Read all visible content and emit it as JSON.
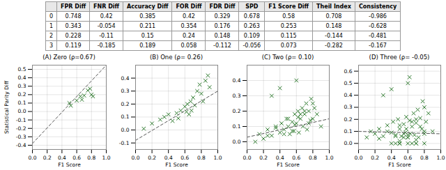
{
  "chart_data": [
    {
      "type": "table",
      "columns": [
        null,
        "FPR Diff",
        "FNR Diff",
        "Accuracy Diff",
        "FOR Diff",
        "FDR Diff",
        "SPD",
        "F1 Score Diff",
        "Theil Index",
        "Consistency"
      ],
      "rows": [
        [
          0,
          0.748,
          0.42,
          0.385,
          0.42,
          0.329,
          0.678,
          0.58,
          0.708,
          -0.986
        ],
        [
          1,
          0.343,
          -0.054,
          0.211,
          0.354,
          0.176,
          0.263,
          0.253,
          0.148,
          -0.628
        ],
        [
          2,
          0.228,
          -0.11,
          0.15,
          0.24,
          0.148,
          0.109,
          0.115,
          -0.144,
          -0.481
        ],
        [
          3,
          0.119,
          -0.185,
          0.189,
          0.058,
          -0.112,
          -0.056,
          0.073,
          -0.282,
          -0.167
        ]
      ]
    },
    {
      "type": "scatter",
      "title": "(A) Zero (ρ=0.67)",
      "xlabel": "F1 Score",
      "ylabel": "Statistical Parity Diff",
      "xlim": [
        0.0,
        1.0
      ],
      "xticks": [
        {
          "value": 0,
          "label": "0.0"
        },
        0.2,
        0.4,
        0.6,
        0.8,
        {
          "value": 1,
          "label": "1.0"
        }
      ],
      "ylim": [
        -0.45,
        0.55
      ],
      "yticks": [
        -0.4,
        -0.3,
        -0.2,
        -0.1,
        {
          "value": 0,
          "label": "0.0"
        },
        0.1,
        0.2,
        0.3,
        0.4,
        0.5
      ],
      "grid": true,
      "series": [
        {
          "type": "scatter",
          "color": "#2d7a2d",
          "marker": "x",
          "x": [
            0.5,
            0.52,
            0.6,
            0.65,
            0.67,
            0.7,
            0.75,
            0.78,
            0.8,
            0.82
          ],
          "values": [
            0.1,
            0.07,
            0.13,
            0.18,
            0.14,
            0.19,
            0.25,
            0.27,
            0.2,
            0.18
          ]
        },
        {
          "type": "line",
          "color": "#555555",
          "line_style": "dashed",
          "x": [
            0.0,
            1.0
          ],
          "values": [
            -0.38,
            0.55
          ]
        }
      ]
    },
    {
      "type": "scatter",
      "title": "(B) One (ρ= 0.26)",
      "xlabel": "F1 Score",
      "xlim": [
        0.0,
        1.0
      ],
      "xticks": [
        {
          "value": 0,
          "label": "0.0"
        },
        0.2,
        0.4,
        0.6,
        0.8,
        {
          "value": 1,
          "label": "1.0"
        }
      ],
      "ylim": [
        -0.15,
        0.5
      ],
      "yticks": [
        -0.1,
        {
          "value": 0,
          "label": "0.0"
        },
        0.1,
        0.2,
        0.3,
        0.4
      ],
      "grid": true,
      "series": [
        {
          "type": "scatter",
          "color": "#2d7a2d",
          "marker": "x",
          "x": [
            0.1,
            0.2,
            0.3,
            0.35,
            0.4,
            0.45,
            0.5,
            0.52,
            0.55,
            0.6,
            0.62,
            0.63,
            0.65,
            0.67,
            0.68,
            0.7,
            0.72,
            0.75,
            0.78,
            0.8,
            0.82,
            0.85,
            0.88,
            0.9
          ],
          "values": [
            0.01,
            0.05,
            0.08,
            0.1,
            0.12,
            0.07,
            0.13,
            0.09,
            0.15,
            0.18,
            0.14,
            0.2,
            0.12,
            0.22,
            0.15,
            0.25,
            0.19,
            0.3,
            0.35,
            0.28,
            0.22,
            0.38,
            0.42,
            0.33
          ]
        },
        {
          "type": "line",
          "color": "#555555",
          "line_style": "dashed",
          "x": [
            0.0,
            1.0
          ],
          "values": [
            -0.08,
            0.3
          ]
        }
      ]
    },
    {
      "type": "scatter",
      "title": "(C) Two (ρ= 0.10)",
      "xlabel": "F1 Score",
      "xlim": [
        0.0,
        1.0
      ],
      "xticks": [
        {
          "value": 0,
          "label": "0.0"
        },
        0.2,
        0.4,
        0.6,
        0.8,
        {
          "value": 1,
          "label": "1.0"
        }
      ],
      "ylim": [
        -0.05,
        0.5
      ],
      "yticks": [
        {
          "value": 0,
          "label": "0.0"
        },
        0.1,
        0.2,
        0.3,
        0.4
      ],
      "grid": true,
      "series": [
        {
          "type": "scatter",
          "color": "#2d7a2d",
          "marker": "x",
          "x": [
            0.1,
            0.15,
            0.2,
            0.25,
            0.3,
            0.35,
            0.4,
            0.42,
            0.45,
            0.48,
            0.5,
            0.52,
            0.55,
            0.57,
            0.58,
            0.6,
            0.62,
            0.63,
            0.65,
            0.67,
            0.68,
            0.7,
            0.72,
            0.73,
            0.75,
            0.77,
            0.78,
            0.8,
            0.82,
            0.85,
            0.3,
            0.4,
            0.5,
            0.6,
            0.7,
            0.8,
            0.9,
            0.55,
            0.65,
            0.75,
            0.45,
            0.35,
            0.25,
            0.62,
            0.58
          ],
          "values": [
            0.0,
            0.05,
            0.02,
            0.08,
            0.04,
            0.1,
            0.06,
            0.12,
            0.08,
            0.15,
            0.1,
            0.05,
            0.13,
            0.07,
            0.18,
            0.12,
            0.2,
            0.06,
            0.15,
            0.22,
            0.1,
            0.18,
            0.25,
            0.08,
            0.2,
            0.14,
            0.28,
            0.15,
            0.22,
            0.18,
            0.3,
            0.35,
            0.15,
            0.4,
            0.2,
            0.25,
            0.1,
            0.07,
            0.18,
            0.12,
            0.05,
            0.09,
            0.04,
            0.16,
            0.11
          ]
        },
        {
          "type": "line",
          "color": "#555555",
          "line_style": "dashed",
          "x": [
            0.0,
            1.0
          ],
          "values": [
            0.03,
            0.15
          ]
        }
      ]
    },
    {
      "type": "scatter",
      "title": "(D) Three (ρ= -0.05)",
      "xlabel": "F1 Score",
      "xlim": [
        0.0,
        1.0
      ],
      "xticks": [
        {
          "value": 0,
          "label": "0.0"
        },
        0.2,
        0.4,
        0.6,
        0.8,
        {
          "value": 1,
          "label": "1.0"
        }
      ],
      "ylim": [
        -0.05,
        0.65
      ],
      "yticks": [
        {
          "value": 0,
          "label": "0.0"
        },
        0.1,
        0.2,
        0.3,
        0.4,
        0.5,
        0.6
      ],
      "grid": true,
      "series": [
        {
          "type": "scatter",
          "color": "#2d7a2d",
          "marker": "x",
          "x": [
            0.1,
            0.15,
            0.2,
            0.25,
            0.3,
            0.35,
            0.4,
            0.42,
            0.45,
            0.48,
            0.5,
            0.52,
            0.55,
            0.57,
            0.58,
            0.6,
            0.62,
            0.63,
            0.65,
            0.67,
            0.68,
            0.7,
            0.72,
            0.73,
            0.75,
            0.77,
            0.78,
            0.8,
            0.82,
            0.85,
            0.3,
            0.4,
            0.5,
            0.6,
            0.7,
            0.8,
            0.9,
            0.55,
            0.65,
            0.75,
            0.45,
            0.35,
            0.25,
            0.62,
            0.58,
            0.5,
            0.6,
            0.7,
            0.8,
            0.4,
            0.5,
            0.6,
            0.7,
            0.5,
            0.6,
            0.7,
            0.8,
            0.65,
            0.55,
            0.45
          ],
          "values": [
            0.05,
            0.1,
            0.08,
            0.12,
            0.06,
            0.15,
            0.09,
            0.18,
            0.07,
            0.2,
            0.12,
            0.06,
            0.16,
            0.09,
            0.22,
            0.05,
            0.19,
            0.08,
            0.14,
            0.25,
            0.07,
            0.17,
            0.28,
            0.05,
            0.21,
            0.12,
            0.35,
            0.1,
            0.18,
            0.25,
            0.4,
            0.45,
            0.15,
            0.5,
            0.2,
            0.3,
            0.1,
            0.08,
            0.18,
            0.14,
            0.06,
            0.1,
            0.04,
            0.55,
            0.12,
            0.0,
            0.05,
            0.0,
            0.08,
            0.0,
            0.02,
            0.07,
            0.03,
            0.0,
            0.0,
            0.0,
            0.0,
            0.0,
            0.05,
            0.0
          ]
        },
        {
          "type": "line",
          "color": "#555555",
          "line_style": "dashed",
          "x": [
            0.0,
            1.0
          ],
          "values": [
            0.1,
            0.08
          ]
        }
      ]
    }
  ]
}
